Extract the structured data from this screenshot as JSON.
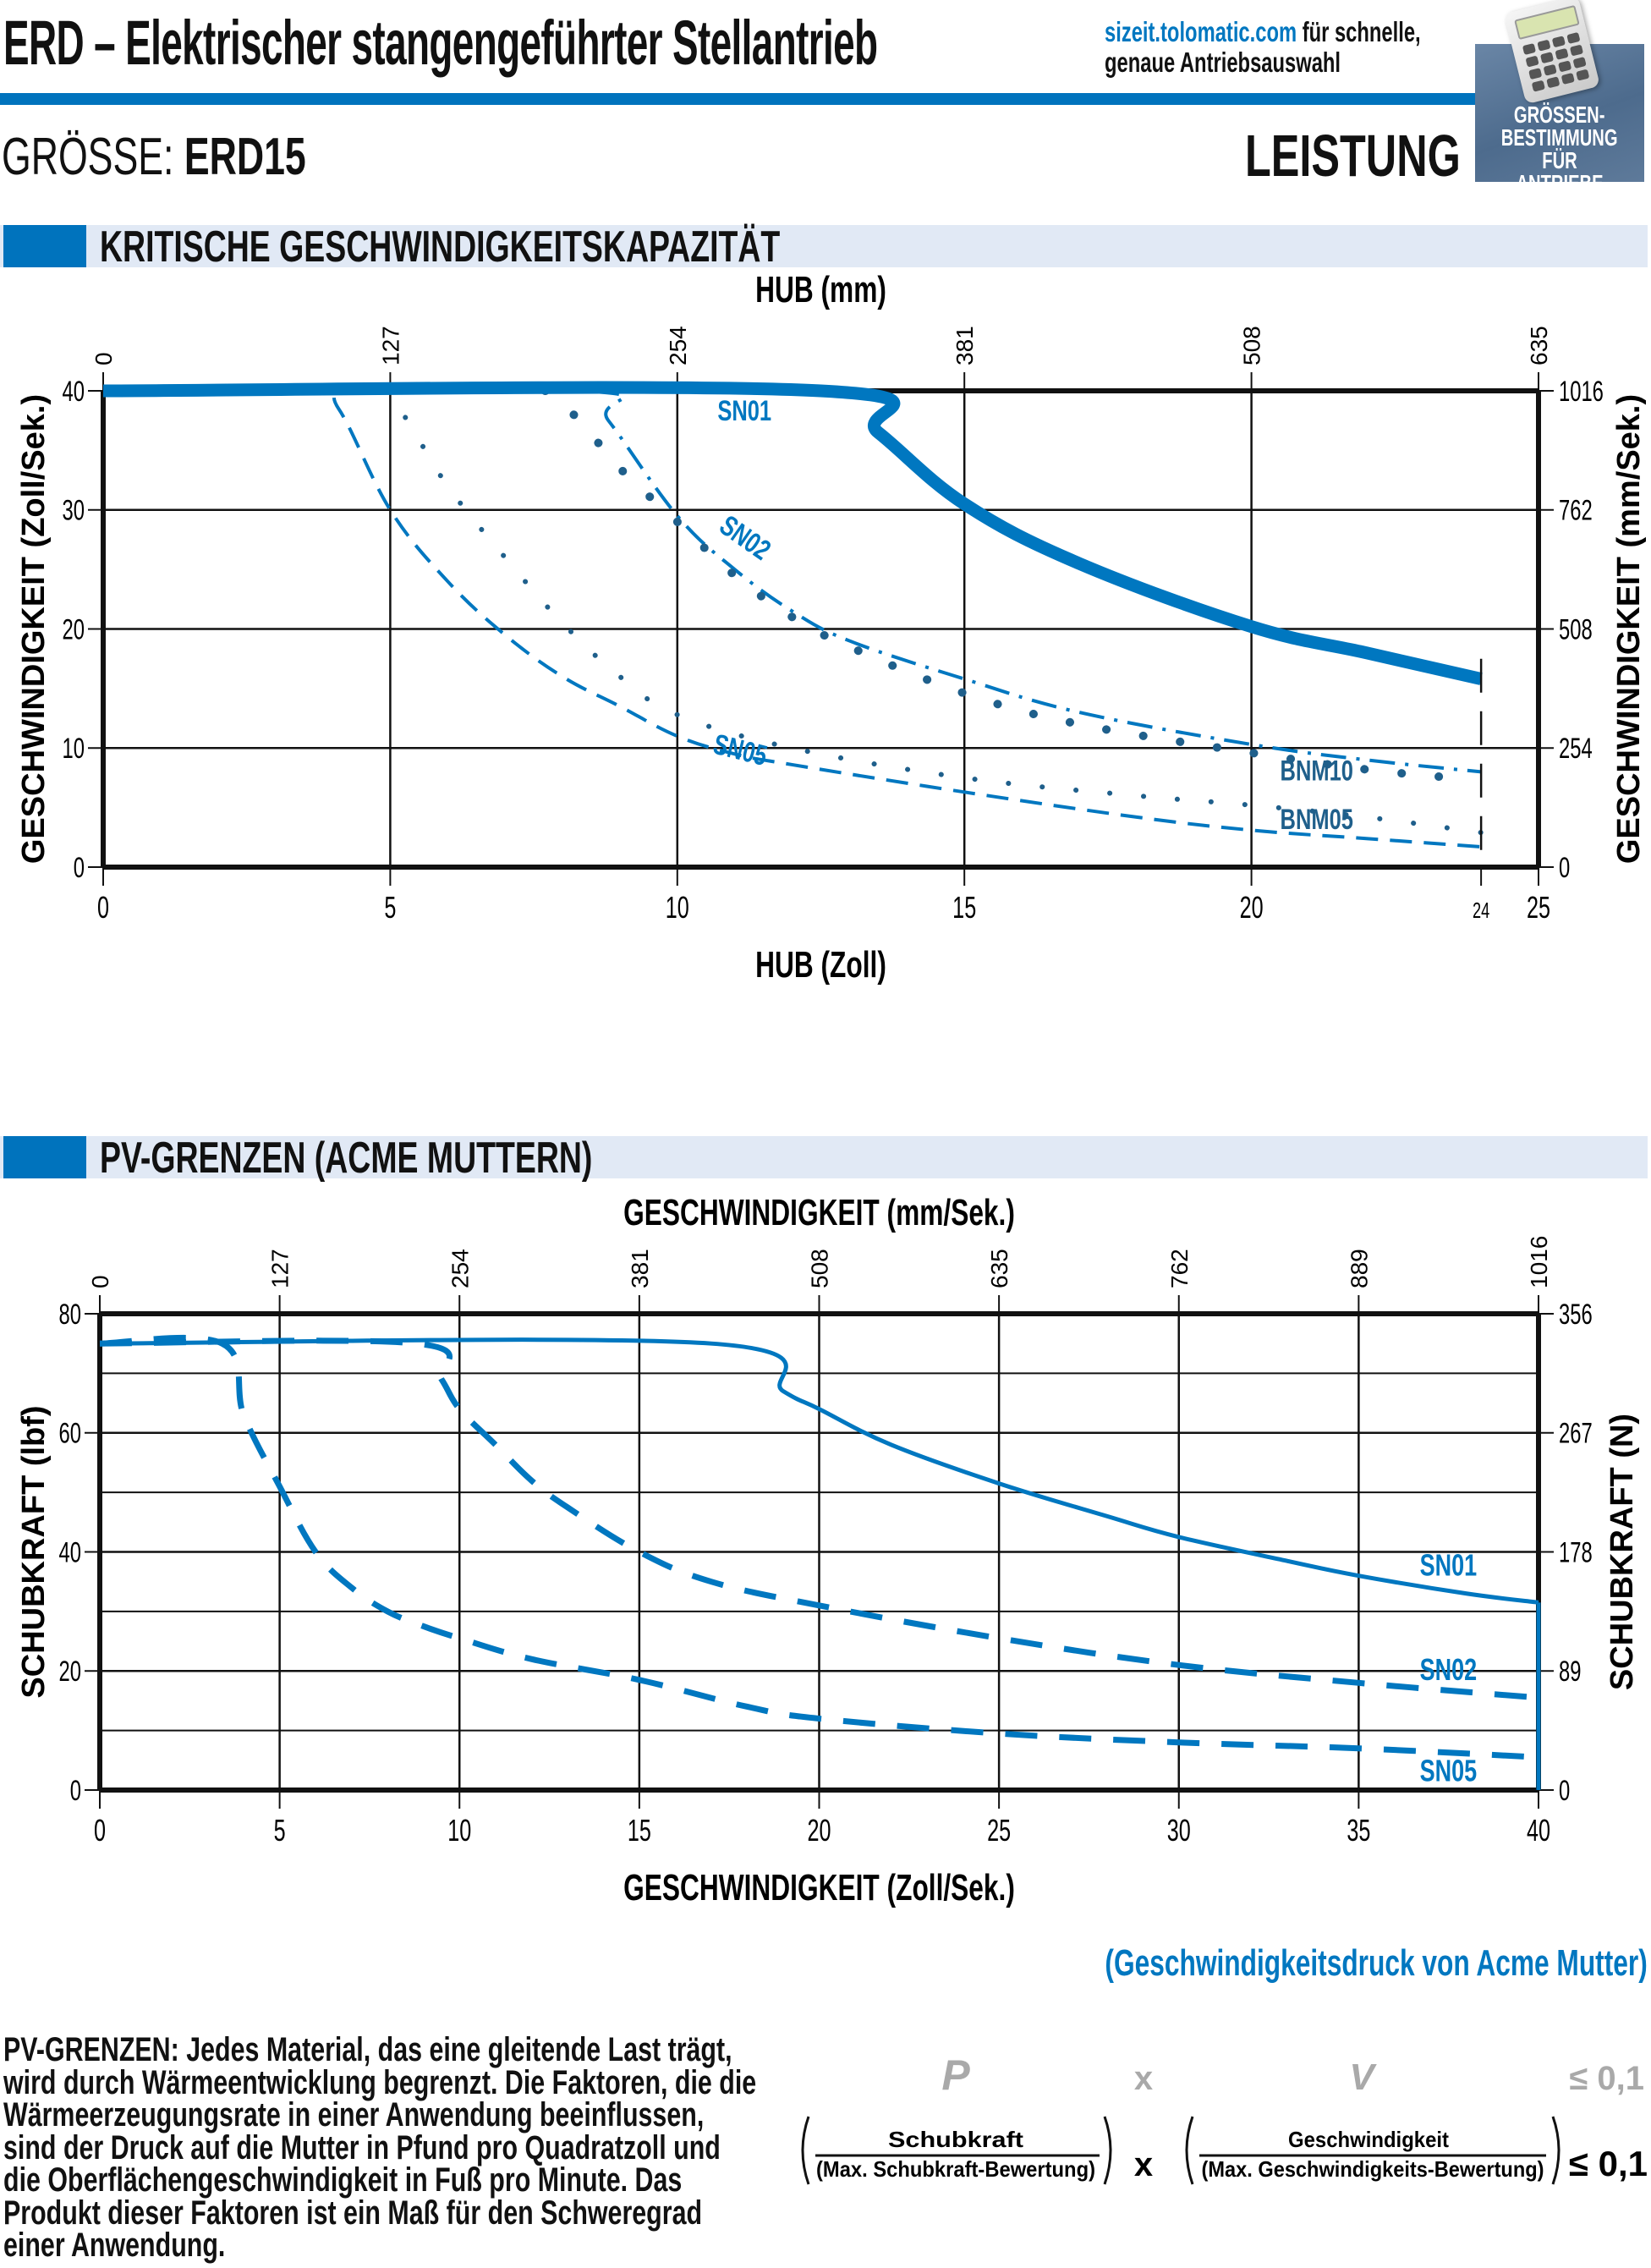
{
  "header": {
    "title": "ERD – Elektrischer stangengeführter Stellantrieb",
    "site_link": "sizeit.tolomatic.com",
    "site_text_1": " für schnelle,",
    "site_text_2": "genaue Antriebsauswahl",
    "size_label": "GRÖSSE:",
    "size_value": "ERD15",
    "section_label": "LEISTUNG",
    "badge_lines": [
      "GRÖSSEN-",
      "BESTIMMUNG",
      "FÜR ANTRIEBE"
    ],
    "badge_icon": "calculator-icon",
    "accent_color": "#0073bd",
    "band_color": "#e1e9f5"
  },
  "sections": {
    "critical_speed": "KRITISCHE GESCHWINDIGKEITSKAPAZITÄT",
    "pv_limits": "PV-GRENZEN (ACME MUTTERN)"
  },
  "chart_data": [
    {
      "type": "line",
      "title": "KRITISCHE GESCHWINDIGKEITSKAPAZITÄT",
      "xlabel": "HUB (Zoll)",
      "x2label": "HUB (mm)",
      "ylabel": "GESCHWINDIGKEIT (Zoll/Sek.)",
      "y2label": "GESCHWINDIGKEIT (mm/Sek.)",
      "xlim": [
        0,
        25
      ],
      "ylim": [
        0,
        40
      ],
      "xticks": [
        0,
        5,
        10,
        15,
        20,
        24,
        25
      ],
      "xtick_labels": [
        "0",
        "5",
        "10",
        "15",
        "20",
        "24",
        "25"
      ],
      "x2ticks": [
        0,
        5,
        10,
        15,
        20,
        25
      ],
      "x2tick_labels": [
        "0",
        "127",
        "254",
        "381",
        "508",
        "635"
      ],
      "yticks": [
        0,
        10,
        20,
        30,
        40
      ],
      "ytick_labels": [
        "0",
        "10",
        "20",
        "30",
        "40"
      ],
      "y2tick_labels": [
        "0",
        "254",
        "508",
        "762",
        "1016"
      ],
      "grid": true,
      "max_stroke": 24,
      "series": [
        {
          "name": "SN01",
          "style": "solid-thick",
          "x": [
            0,
            12.5,
            13.5,
            15,
            17,
            20,
            22,
            24
          ],
          "y": [
            40,
            40,
            36.5,
            30.5,
            25.5,
            20.2,
            18,
            15.8
          ]
        },
        {
          "name": "SN02",
          "style": "dash-dot",
          "x": [
            0,
            8.3,
            8.8,
            10,
            11,
            12,
            13,
            15,
            17,
            20,
            22,
            24
          ],
          "y": [
            40,
            40,
            37.5,
            29.5,
            25,
            21.5,
            19,
            15.8,
            13,
            10.3,
            9,
            8
          ]
        },
        {
          "name": "BNM10",
          "style": "large-dots",
          "x": [
            7.7,
            8.3,
            9,
            10,
            11,
            12,
            13,
            15,
            17,
            20,
            22,
            23.5
          ],
          "y": [
            40,
            37.5,
            33.5,
            29,
            24.5,
            21,
            18.5,
            14.6,
            12,
            9.6,
            8.2,
            7.5
          ]
        },
        {
          "name": "BNM05",
          "style": "small-dots",
          "x": [
            4.9,
            5.3,
            6,
            7,
            8,
            9,
            10,
            12,
            15,
            18,
            20,
            22,
            24
          ],
          "y": [
            40,
            37.5,
            32,
            26,
            20.5,
            16,
            12.8,
            10,
            7.5,
            6,
            5.2,
            4.2,
            2.9
          ]
        },
        {
          "name": "SN05",
          "style": "dashed",
          "x": [
            0,
            3.6,
            4.1,
            5,
            6,
            7,
            8,
            9,
            10,
            11,
            12,
            15,
            18,
            20,
            22,
            24
          ],
          "y": [
            40,
            40,
            38.5,
            30,
            24,
            19.5,
            16,
            13.5,
            11,
            9.5,
            8.6,
            6.3,
            4.2,
            3.1,
            2.4,
            1.7
          ]
        }
      ],
      "series_labels": {
        "SN01": "SN01",
        "SN02": "SN02",
        "SN05": "SN05",
        "BNM10": "BNM10",
        "BNM05": "BNM05"
      }
    },
    {
      "type": "line",
      "title": "PV-GRENZEN (ACME MUTTERN)",
      "xlabel": "GESCHWINDIGKEIT (Zoll/Sek.)",
      "x2label": "GESCHWINDIGKEIT (mm/Sek.)",
      "ylabel": "SCHUBKRAFT (lbf)",
      "y2label": "SCHUBKRAFT (N)",
      "xlim": [
        0,
        40
      ],
      "ylim": [
        0,
        80
      ],
      "xticks": [
        0,
        5,
        10,
        15,
        20,
        25,
        30,
        35,
        40
      ],
      "xtick_labels": [
        "0",
        "5",
        "10",
        "15",
        "20",
        "25",
        "30",
        "35",
        "40"
      ],
      "x2tick_labels": [
        "0",
        "127",
        "254",
        "381",
        "508",
        "635",
        "762",
        "889",
        "1016"
      ],
      "yticks": [
        0,
        20,
        40,
        60,
        80
      ],
      "ytick_labels": [
        "0",
        "20",
        "40",
        "60",
        "80"
      ],
      "y2tick_labels": [
        "0",
        "89",
        "178",
        "267",
        "356"
      ],
      "ygrid_minor": [
        10,
        30,
        50,
        70
      ],
      "grid": true,
      "series": [
        {
          "name": "SN01",
          "style": "solid",
          "x": [
            0,
            17,
            19,
            20,
            22,
            25,
            28,
            30,
            33,
            35,
            38,
            40
          ],
          "y": [
            75,
            75,
            67,
            64,
            58,
            51.5,
            46,
            42.5,
            38.5,
            36,
            33,
            31.5
          ]
        },
        {
          "name": "SN02",
          "style": "dashed",
          "x": [
            0,
            8.8,
            9.5,
            10,
            11,
            12,
            13,
            15,
            17,
            20,
            25,
            30,
            35,
            40
          ],
          "y": [
            75,
            75,
            69,
            64,
            58,
            52,
            47.5,
            40,
            35,
            31,
            25.5,
            21,
            18,
            15.5
          ]
        },
        {
          "name": "SN05",
          "style": "dashed",
          "x": [
            0,
            3.4,
            4,
            5,
            6,
            7,
            8,
            9,
            10,
            12,
            15,
            18,
            20,
            25,
            30,
            35,
            40
          ],
          "y": [
            75,
            75,
            63,
            51,
            40,
            34,
            30,
            27.5,
            25.5,
            22,
            18.5,
            14,
            12,
            9.5,
            8,
            7,
            5.5
          ]
        }
      ],
      "vertical_limit": {
        "x": 40,
        "from": 0,
        "to": 31.5
      },
      "series_labels": {
        "SN01": "SN01",
        "SN02": "SN02",
        "SN05": "SN05"
      }
    }
  ],
  "footer": {
    "caption": "(Geschwindigkeitsdruck von Acme Mutter)",
    "paragraph": "PV-GRENZEN: Jedes Material, das eine gleitende Last trägt, wird durch Wärmeentwicklung begrenzt. Die Faktoren, die die Wärmeerzeugungsrate in einer Anwendung beeinflussen, sind der Druck auf die Mutter in Pfund pro Quadratzoll und die Oberflächengeschwindigkeit in Fuß pro Minute. Das Produkt dieser Faktoren ist ein Maß für den Schweregrad einer Anwendung.",
    "formula_top": {
      "p": "P",
      "x": "x",
      "v": "V",
      "limit": "≤ 0,1"
    },
    "formula": {
      "num1": "Schubkraft",
      "den1": "(Max. Schubkraft-Bewertung)",
      "times": "x",
      "num2": "Geschwindigkeit",
      "den2": "(Max. Geschwindigkeits-Bewertung)",
      "limit": "≤ 0,1"
    }
  }
}
